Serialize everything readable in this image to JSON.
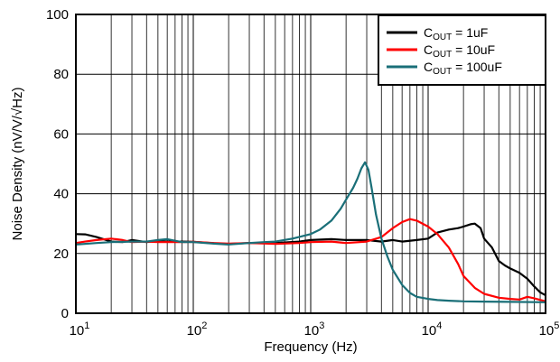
{
  "chart_data": {
    "type": "line",
    "title": "",
    "xlabel": "Frequency (Hz)",
    "ylabel": "Noise Density (nV/V/√Hz)",
    "xscale": "log",
    "xlim": [
      10,
      100000
    ],
    "ylim": [
      0,
      100
    ],
    "grid": true,
    "legend_position": "top-right",
    "x_ticks": [
      {
        "value": 10,
        "base": "10",
        "exp": "1"
      },
      {
        "value": 100,
        "base": "10",
        "exp": "2"
      },
      {
        "value": 1000,
        "base": "10",
        "exp": "3"
      },
      {
        "value": 10000,
        "base": "10",
        "exp": "4"
      },
      {
        "value": 100000,
        "base": "10",
        "exp": "5"
      }
    ],
    "y_ticks": [
      {
        "value": 0,
        "label": "0"
      },
      {
        "value": 20,
        "label": "20"
      },
      {
        "value": 40,
        "label": "40"
      },
      {
        "value": 60,
        "label": "60"
      },
      {
        "value": 80,
        "label": "80"
      },
      {
        "value": 100,
        "label": "100"
      }
    ],
    "series": [
      {
        "name": "COUT = 1uF",
        "legend": {
          "prefix": "C",
          "sub": "OUT",
          "suffix": " = 1uF"
        },
        "color": "#000000",
        "x": [
          10,
          12,
          15,
          20,
          25,
          30,
          40,
          50,
          60,
          80,
          100,
          150,
          200,
          300,
          500,
          800,
          1000,
          1500,
          2000,
          3000,
          4000,
          5000,
          6000,
          8000,
          10000,
          12000,
          15000,
          18000,
          20000,
          23000,
          25000,
          28000,
          30000,
          35000,
          40000,
          45000,
          50000,
          60000,
          70000,
          80000,
          90000,
          100000
        ],
        "y": [
          26.5,
          26.4,
          25.5,
          24.0,
          23.8,
          24.5,
          23.8,
          24.2,
          24.0,
          24.0,
          23.9,
          23.4,
          23.2,
          23.5,
          23.5,
          24.0,
          24.5,
          24.8,
          24.5,
          24.5,
          24.0,
          24.5,
          24.0,
          24.5,
          25.0,
          27.0,
          28.0,
          28.5,
          29.0,
          29.8,
          30.0,
          28.5,
          25.0,
          22.0,
          17.5,
          16.0,
          15.0,
          13.5,
          11.5,
          9.0,
          7.0,
          6.0
        ]
      },
      {
        "name": "COUT = 10uF",
        "legend": {
          "prefix": "C",
          "sub": "OUT",
          "suffix": " = 10uF"
        },
        "color": "#ff0000",
        "x": [
          10,
          12,
          15,
          20,
          25,
          30,
          40,
          50,
          60,
          80,
          100,
          150,
          200,
          300,
          500,
          800,
          1000,
          1500,
          2000,
          3000,
          4000,
          5000,
          6000,
          7000,
          8000,
          10000,
          12000,
          15000,
          18000,
          20000,
          25000,
          30000,
          40000,
          50000,
          60000,
          70000,
          80000,
          100000
        ],
        "y": [
          23.5,
          24.0,
          24.5,
          25.0,
          24.5,
          23.8,
          24.0,
          23.8,
          23.8,
          23.8,
          23.9,
          23.5,
          23.3,
          23.5,
          23.2,
          23.5,
          23.8,
          24.0,
          23.5,
          24.0,
          25.5,
          28.5,
          30.5,
          31.5,
          31.0,
          29.0,
          26.5,
          22.0,
          16.5,
          12.5,
          8.5,
          6.5,
          5.2,
          4.8,
          4.6,
          5.5,
          5.0,
          4.0
        ]
      },
      {
        "name": "COUT = 100uF",
        "legend": {
          "prefix": "C",
          "sub": "OUT",
          "suffix": " = 100uF"
        },
        "color": "#1a6f78",
        "x": [
          10,
          15,
          20,
          30,
          40,
          50,
          60,
          80,
          100,
          150,
          200,
          300,
          400,
          500,
          700,
          1000,
          1200,
          1500,
          1800,
          2000,
          2300,
          2500,
          2700,
          2900,
          3100,
          3300,
          3600,
          4000,
          4500,
          5000,
          6000,
          7000,
          8000,
          10000,
          12000,
          15000,
          20000,
          30000,
          50000,
          100000
        ],
        "y": [
          23.0,
          23.5,
          23.8,
          24.0,
          24.0,
          24.5,
          24.8,
          23.8,
          23.8,
          23.3,
          23.0,
          23.5,
          23.8,
          24.0,
          25.0,
          26.5,
          28.0,
          31.0,
          35.0,
          38.0,
          42.0,
          45.0,
          48.5,
          50.5,
          48.0,
          42.0,
          33.0,
          25.0,
          19.0,
          14.5,
          9.5,
          6.8,
          5.5,
          4.8,
          4.4,
          4.2,
          4.0,
          3.9,
          3.8,
          3.7
        ]
      }
    ]
  }
}
